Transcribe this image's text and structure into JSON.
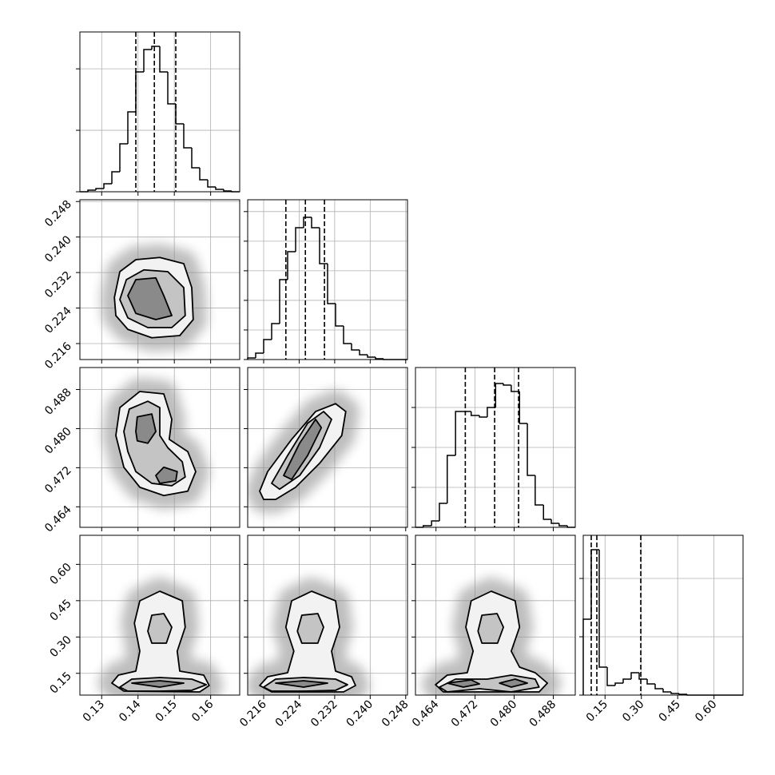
{
  "chart_data": {
    "type": "corner",
    "params": [
      {
        "lim": [
          0.124,
          0.168
        ],
        "ticks": [
          0.13,
          0.14,
          0.15,
          0.16
        ]
      },
      {
        "lim": [
          0.2124,
          0.2484
        ],
        "ticks": [
          0.216,
          0.224,
          0.232,
          {
            "value": 0.24,
            "label": "0.240"
          },
          0.248
        ]
      },
      {
        "lim": [
          0.4598,
          0.4925
        ],
        "ticks": [
          0.464,
          0.472,
          {
            "value": 0.48,
            "label": "0.480"
          },
          0.488
        ]
      },
      {
        "lim": [
          0.06,
          0.72
        ],
        "ticks": [
          0.15,
          {
            "value": 0.3,
            "label": "0.30"
          },
          0.45,
          {
            "value": 0.6,
            "label": "0.60"
          }
        ]
      }
    ],
    "histograms": [
      {
        "bins": [
          0.124,
          0.1262,
          0.1284,
          0.1306,
          0.1328,
          0.135,
          0.1372,
          0.1394,
          0.1416,
          0.1438,
          0.146,
          0.1482,
          0.1504,
          0.1526,
          0.1548,
          0.157,
          0.1592,
          0.1614,
          0.1636,
          0.1658,
          0.168
        ],
        "values": [
          0,
          26,
          52,
          130,
          325,
          780,
          1300,
          1950,
          2314,
          2366,
          1950,
          1430,
          1105,
          715,
          390,
          195,
          78,
          39,
          13,
          0
        ],
        "ylim": [
          0,
          2600
        ],
        "yticks": [
          0,
          1000,
          2000
        ],
        "quantiles": [
          0.1394,
          0.1445,
          0.1504
        ]
      },
      {
        "bins": [
          0.2124,
          0.2142,
          0.216,
          0.2178,
          0.2196,
          0.2214,
          0.2232,
          0.225,
          0.2268,
          0.2286,
          0.2304,
          0.2322,
          0.234,
          0.2358,
          0.2376,
          0.2394,
          0.2412,
          0.243,
          0.2448,
          0.2466,
          0.2484
        ],
        "values": [
          27,
          108,
          338,
          608,
          1350,
          1823,
          2228,
          2403,
          2228,
          1620,
          945,
          567,
          270,
          162,
          81,
          41,
          14,
          0,
          0,
          0
        ],
        "ylim": [
          0,
          2700
        ],
        "yticks": [
          0,
          500,
          1000,
          1500,
          2000,
          2500
        ],
        "quantiles": [
          0.221,
          0.2254,
          0.2297
        ]
      },
      {
        "bins": [
          0.4598,
          0.4614,
          0.4631,
          0.4647,
          0.4663,
          0.468,
          0.4696,
          0.4712,
          0.4729,
          0.4745,
          0.4762,
          0.4778,
          0.4794,
          0.4811,
          0.4827,
          0.4843,
          0.486,
          0.4876,
          0.4892,
          0.4909,
          0.4925
        ],
        "values": [
          0,
          40,
          160,
          600,
          1800,
          2900,
          2900,
          2800,
          2760,
          3000,
          3600,
          3560,
          3400,
          2600,
          1300,
          560,
          200,
          100,
          40,
          0
        ],
        "ylim": [
          0,
          4000
        ],
        "yticks": [
          0,
          1000,
          2000,
          3000
        ],
        "quantiles": [
          0.47,
          0.476,
          0.4809
        ]
      },
      {
        "bins": [
          0.06,
          0.093,
          0.126,
          0.159,
          0.192,
          0.225,
          0.258,
          0.291,
          0.324,
          0.357,
          0.39,
          0.423,
          0.456,
          0.489,
          0.522,
          0.555,
          0.588,
          0.621,
          0.654,
          0.687,
          0.72
        ],
        "values": [
          1302,
          2493,
          480,
          164,
          206,
          274,
          384,
          274,
          192,
          110,
          55,
          27,
          14,
          0,
          0,
          0,
          0,
          0,
          0,
          0
        ],
        "ylim": [
          0,
          2740
        ],
        "yticks": [
          0,
          1000,
          2000
        ],
        "quantiles": [
          0.093,
          0.1161,
          0.2976
        ]
      }
    ],
    "pairs": [
      {
        "contours": [
          [
            {
              "x": [
                0.1335,
                0.135,
                0.1394,
                0.146,
                0.1526,
                0.1548,
                0.1552,
                0.1515,
                0.1438,
                0.1372,
                0.1339
              ],
              "y": [
                0.2264,
                0.2322,
                0.2349,
                0.2354,
                0.234,
                0.2286,
                0.2214,
                0.2178,
                0.2173,
                0.2192,
                0.2223
              ]
            }
          ],
          [
            {
              "x": [
                0.135,
                0.1368,
                0.1416,
                0.1482,
                0.1526,
                0.153,
                0.1493,
                0.1427,
                0.1372
              ],
              "y": [
                0.2259,
                0.2304,
                0.2326,
                0.2322,
                0.2286,
                0.2223,
                0.2196,
                0.2196,
                0.2218
              ]
            }
          ],
          [
            {
              "x": [
                0.1372,
                0.1394,
                0.1449,
                0.1471,
                0.1493,
                0.1449,
                0.1394
              ],
              "y": [
                0.2268,
                0.2304,
                0.2308,
                0.2268,
                0.2223,
                0.2214,
                0.2228
              ]
            }
          ]
        ]
      },
      {
        "contours": [
          [
            {
              "x": [
                0.1339,
                0.135,
                0.1405,
                0.1471,
                0.1493,
                0.1486,
                0.1537,
                0.1559,
                0.1537,
                0.1471,
                0.1405,
                0.1361
              ],
              "y": [
                0.4786,
                0.4843,
                0.4876,
                0.4871,
                0.4819,
                0.4778,
                0.4753,
                0.4712,
                0.4672,
                0.4663,
                0.468,
                0.4721
              ]
            }
          ],
          [
            {
              "x": [
                0.1361,
                0.1376,
                0.1427,
                0.146,
                0.146,
                0.1482,
                0.1522,
                0.153,
                0.1493,
                0.1438,
                0.1394,
                0.1372
              ],
              "y": [
                0.4794,
                0.484,
                0.4856,
                0.4843,
                0.4786,
                0.4761,
                0.4732,
                0.4701,
                0.4683,
                0.4688,
                0.4712,
                0.4753
              ]
            }
          ],
          [
            {
              "x": [
                0.1394,
                0.1398,
                0.1438,
                0.1449,
                0.1427,
                0.1398
              ],
              "y": [
                0.4794,
                0.4824,
                0.483,
                0.4794,
                0.477,
                0.4775
              ]
            },
            {
              "x": [
                0.1449,
                0.1471,
                0.1508,
                0.1504,
                0.146
              ],
              "y": [
                0.4704,
                0.4721,
                0.4712,
                0.4693,
                0.4688
              ]
            }
          ]
        ]
      },
      {
        "contours": [
          [
            {
              "x": [
                0.2151,
                0.2169,
                0.2223,
                0.2277,
                0.2322,
                0.2345,
                0.2336,
                0.2286,
                0.2232,
                0.2187,
                0.216
              ],
              "y": [
                0.4672,
                0.4712,
                0.4778,
                0.4835,
                0.4851,
                0.4835,
                0.4786,
                0.4729,
                0.468,
                0.4655,
                0.4655
              ]
            }
          ],
          [
            {
              "x": [
                0.2178,
                0.2214,
                0.2259,
                0.2295,
                0.2313,
                0.2286,
                0.2241,
                0.2196
              ],
              "y": [
                0.4688,
                0.4745,
                0.4811,
                0.4835,
                0.4819,
                0.4761,
                0.4704,
                0.4676
              ]
            }
          ],
          [
            {
              "x": [
                0.2205,
                0.2241,
                0.2277,
                0.229,
                0.2259,
                0.2223
              ],
              "y": [
                0.4704,
                0.477,
                0.4819,
                0.4802,
                0.4745,
                0.4696
              ]
            }
          ]
        ]
      },
      {
        "contours": [
          [
            {
              "x": [
                0.1361,
                0.1328,
                0.1346,
                0.1394,
                0.1405,
                0.139,
                0.1405,
                0.146,
                0.1522,
                0.153,
                0.1508,
                0.1515,
                0.1581,
                0.1596,
                0.157
              ],
              "y": [
                0.0765,
                0.1095,
                0.1425,
                0.159,
                0.2415,
                0.357,
                0.4494,
                0.489,
                0.4494,
                0.3405,
                0.2415,
                0.159,
                0.1425,
                0.0996,
                0.0732
              ]
            }
          ],
          [
            {
              "x": [
                0.1427,
                0.1438,
                0.1471,
                0.1493,
                0.1478,
                0.1438
              ],
              "y": [
                0.324,
                0.39,
                0.3966,
                0.3405,
                0.2745,
                0.2745
              ]
            },
            {
              "x": [
                0.135,
                0.1383,
                0.146,
                0.1548,
                0.1588,
                0.1548,
                0.146,
                0.1372
              ],
              "y": [
                0.093,
                0.126,
                0.1326,
                0.126,
                0.1029,
                0.0798,
                0.0765,
                0.0765
              ]
            }
          ],
          [
            {
              "x": [
                0.1383,
                0.146,
                0.1526,
                0.146
              ],
              "y": [
                0.1095,
                0.1194,
                0.1095,
                0.093
              ]
            }
          ]
        ]
      },
      {
        "contours": [
          [
            {
              "x": [
                0.2178,
                0.2151,
                0.2169,
                0.2214,
                0.2228,
                0.221,
                0.2223,
                0.2268,
                0.2322,
                0.2331,
                0.2313,
                0.2322,
                0.2358,
                0.2367,
                0.234
              ],
              "y": [
                0.0732,
                0.0996,
                0.1359,
                0.1524,
                0.2415,
                0.3405,
                0.4494,
                0.489,
                0.4494,
                0.3405,
                0.2415,
                0.159,
                0.1359,
                0.0996,
                0.0732
              ]
            }
          ],
          [
            {
              "x": [
                0.2236,
                0.2246,
                0.2282,
                0.2295,
                0.2282,
                0.2246
              ],
              "y": [
                0.324,
                0.39,
                0.3966,
                0.3405,
                0.2745,
                0.2745
              ]
            },
            {
              "x": [
                0.216,
                0.2187,
                0.225,
                0.2322,
                0.2349,
                0.2322,
                0.225,
                0.2178
              ],
              "y": [
                0.093,
                0.126,
                0.1326,
                0.126,
                0.1029,
                0.0798,
                0.0765,
                0.0765
              ]
            }
          ],
          [
            {
              "x": [
                0.2187,
                0.225,
                0.2304,
                0.225
              ],
              "y": [
                0.1095,
                0.1194,
                0.1095,
                0.093
              ]
            }
          ]
        ]
      },
      {
        "contours": [
          [
            {
              "x": [
                0.4655,
                0.4639,
                0.4663,
                0.4704,
                0.4716,
                0.4701,
                0.4712,
                0.4753,
                0.4802,
                0.4811,
                0.4794,
                0.4811,
                0.4843,
                0.4868,
                0.4851
              ],
              "y": [
                0.0732,
                0.1029,
                0.1425,
                0.1524,
                0.2415,
                0.3405,
                0.4494,
                0.489,
                0.4494,
                0.3405,
                0.2415,
                0.1755,
                0.1524,
                0.1095,
                0.0732
              ]
            }
          ],
          [
            {
              "x": [
                0.4726,
                0.4734,
                0.4765,
                0.4778,
                0.4766,
                0.4734
              ],
              "y": [
                0.324,
                0.39,
                0.3966,
                0.3405,
                0.2745,
                0.2745
              ]
            },
            {
              "x": [
                0.4647,
                0.468,
                0.4745,
                0.4794,
                0.4843,
                0.4851,
                0.4794,
                0.4729,
                0.4663
              ],
              "y": [
                0.093,
                0.126,
                0.126,
                0.1425,
                0.126,
                0.093,
                0.0732,
                0.0864,
                0.0732
              ]
            }
          ],
          [
            {
              "x": [
                0.4663,
                0.4712,
                0.4729,
                0.4696
              ],
              "y": [
                0.1095,
                0.1227,
                0.1062,
                0.093
              ]
            },
            {
              "x": [
                0.477,
                0.4802,
                0.4827,
                0.4794
              ],
              "y": [
                0.1095,
                0.126,
                0.1095,
                0.093
              ]
            }
          ]
        ]
      }
    ]
  }
}
